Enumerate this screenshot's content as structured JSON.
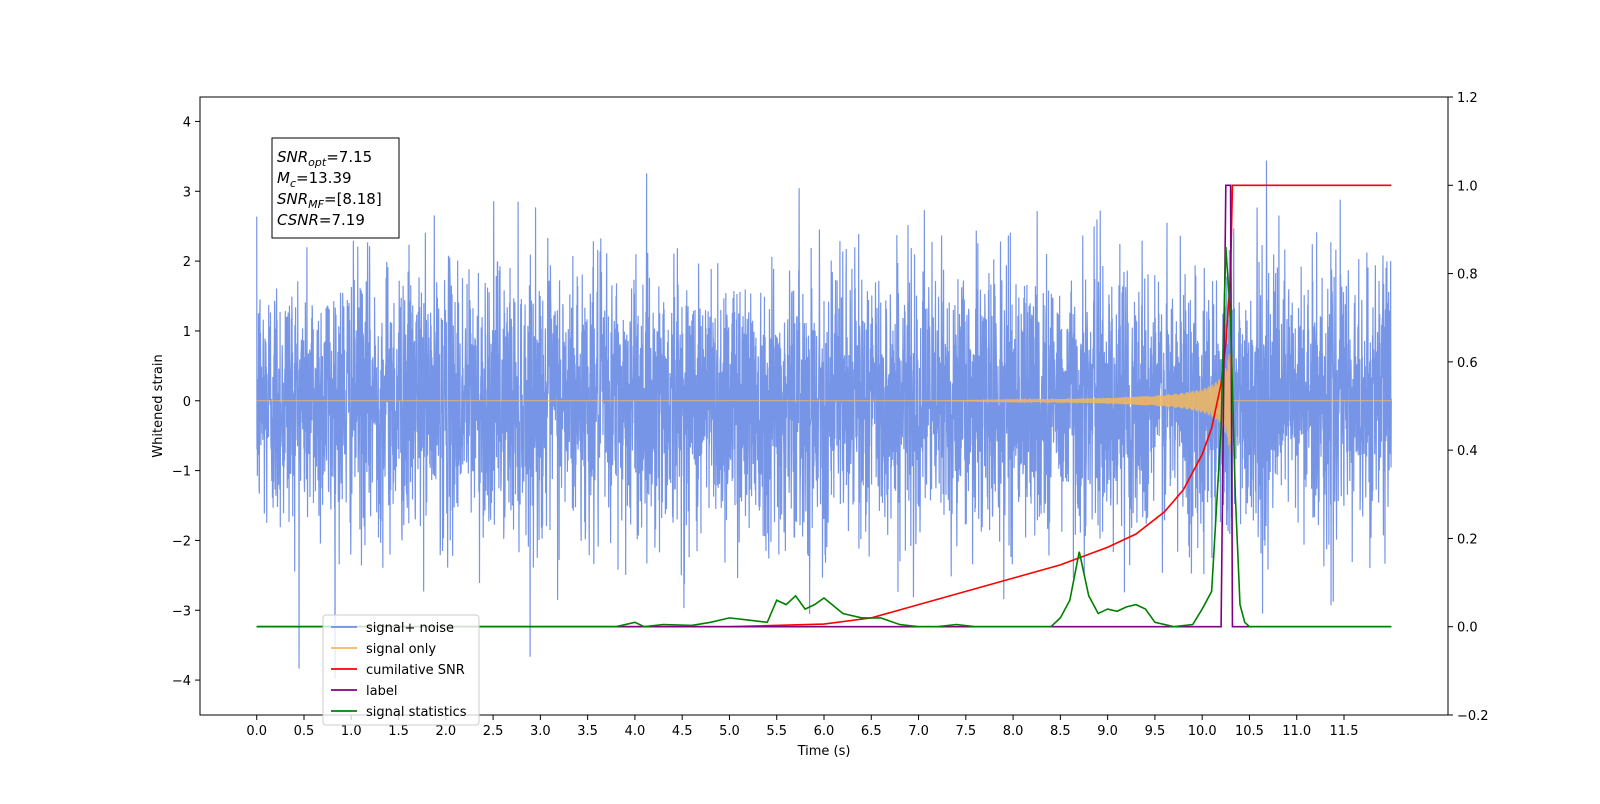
{
  "chart_data": {
    "type": "line",
    "xlabel": "Time (s)",
    "ylabel_left": "Whitened strain",
    "ylabel_right": "",
    "xlim": [
      -0.6,
      12.6
    ],
    "ylim_left": [
      -4.5,
      4.35
    ],
    "ylim_right": [
      -0.2,
      1.2
    ],
    "x_tick_labels": [
      "0.0",
      "0.5",
      "1.0",
      "1.5",
      "2.0",
      "2.5",
      "3.0",
      "3.5",
      "4.0",
      "4.5",
      "5.0",
      "5.5",
      "6.0",
      "6.5",
      "7.0",
      "7.5",
      "8.0",
      "8.5",
      "9.0",
      "9.5",
      "10.0",
      "10.5",
      "11.0",
      "11.5"
    ],
    "y_left_tick_labels": [
      "4",
      "3",
      "2",
      "1",
      "0",
      "−1",
      "−2",
      "−3",
      "−4"
    ],
    "y_right_tick_labels": [
      "1.2",
      "1.0",
      "0.8",
      "0.6",
      "0.4",
      "0.2",
      "0.0",
      "−0.2"
    ],
    "grid": false,
    "legend_position": "lower-left",
    "info_box": {
      "lines": [
        {
          "main": "SNR",
          "sub": "opt",
          "rest": "=7.15"
        },
        {
          "main": "M",
          "sub": "c",
          "rest": "=13.39"
        },
        {
          "main": "SNR",
          "sub": "MF",
          "rest": "=[8.18]"
        },
        {
          "main": "CSNR",
          "sub": "",
          "rest": "=7.19"
        }
      ]
    },
    "series": [
      {
        "name": "signal+ noise",
        "axis": "left",
        "color": "#6f8fe6",
        "description_range": [
          -4.1,
          3.95
        ],
        "x_range": [
          0.0,
          12.0
        ]
      },
      {
        "name": "signal only",
        "axis": "left",
        "color": "#f5b85a",
        "chirp_merger_time": 10.3,
        "chirp_peak_amplitude": 0.75
      },
      {
        "name": "cumilative SNR",
        "axis": "right",
        "color": "#ff0000",
        "x": [
          0.0,
          5.0,
          6.0,
          6.5,
          7.0,
          7.5,
          8.0,
          8.5,
          9.0,
          9.3,
          9.6,
          9.8,
          10.0,
          10.1,
          10.2,
          10.25,
          10.3,
          10.32,
          12.0
        ],
        "values": [
          0.0,
          0.0,
          0.006,
          0.02,
          0.05,
          0.08,
          0.11,
          0.14,
          0.18,
          0.21,
          0.26,
          0.31,
          0.39,
          0.45,
          0.55,
          0.64,
          0.8,
          1.0,
          1.0
        ]
      },
      {
        "name": "label",
        "axis": "right",
        "color": "#800080",
        "x": [
          0.0,
          10.2,
          10.25,
          10.3,
          10.32,
          10.35,
          12.0
        ],
        "values": [
          0.0,
          0.0,
          1.0,
          1.0,
          0.0,
          0.0,
          0.0
        ]
      },
      {
        "name": "signal statistics",
        "axis": "right",
        "color": "#008000",
        "x": [
          0.0,
          3.8,
          4.0,
          4.1,
          4.3,
          4.6,
          4.8,
          5.0,
          5.2,
          5.4,
          5.5,
          5.6,
          5.7,
          5.8,
          5.9,
          6.0,
          6.2,
          6.4,
          6.6,
          6.8,
          7.0,
          7.2,
          7.4,
          7.6,
          8.4,
          8.5,
          8.6,
          8.7,
          8.8,
          8.9,
          9.0,
          9.1,
          9.2,
          9.3,
          9.4,
          9.5,
          9.7,
          9.9,
          10.0,
          10.1,
          10.2,
          10.25,
          10.3,
          10.35,
          10.4,
          10.45,
          10.5,
          12.0
        ],
        "values": [
          0.0,
          0.0,
          0.01,
          0.0,
          0.005,
          0.003,
          0.01,
          0.02,
          0.015,
          0.01,
          0.06,
          0.05,
          0.07,
          0.04,
          0.05,
          0.065,
          0.03,
          0.02,
          0.02,
          0.005,
          0.0,
          0.0,
          0.005,
          0.0,
          0.0,
          0.02,
          0.06,
          0.17,
          0.07,
          0.03,
          0.04,
          0.035,
          0.045,
          0.05,
          0.04,
          0.01,
          0.0,
          0.005,
          0.04,
          0.08,
          0.45,
          0.86,
          0.7,
          0.3,
          0.05,
          0.01,
          0.0,
          0.0
        ]
      }
    ]
  }
}
